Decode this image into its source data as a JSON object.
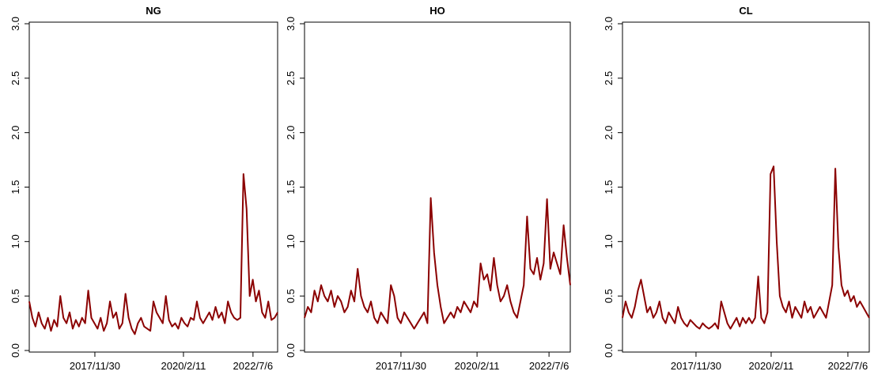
{
  "chart_data": [
    {
      "type": "line",
      "title": "NG",
      "color": "#8b0000",
      "ylim": [
        0,
        3
      ],
      "yticks": [
        {
          "value": 0,
          "label": "0.0"
        },
        0.5,
        {
          "value": 1,
          "label": "1.0"
        },
        1.5,
        {
          "value": 2,
          "label": "2.0"
        },
        2.5,
        {
          "value": 3,
          "label": "3.0"
        }
      ],
      "xlim": [
        0,
        2400
      ],
      "xticks": [
        {
          "value": 634,
          "label": "2017/11/30"
        },
        {
          "value": 1490,
          "label": "2020/2/11"
        },
        {
          "value": 2162,
          "label": "2022/7/6"
        }
      ],
      "x": [
        0,
        30,
        60,
        90,
        120,
        150,
        180,
        210,
        240,
        270,
        300,
        330,
        360,
        390,
        420,
        450,
        480,
        510,
        540,
        570,
        600,
        630,
        660,
        690,
        720,
        750,
        780,
        810,
        840,
        870,
        900,
        930,
        960,
        990,
        1020,
        1050,
        1080,
        1110,
        1140,
        1170,
        1200,
        1230,
        1260,
        1290,
        1320,
        1350,
        1380,
        1410,
        1440,
        1470,
        1500,
        1530,
        1560,
        1590,
        1620,
        1650,
        1680,
        1710,
        1740,
        1770,
        1800,
        1830,
        1860,
        1890,
        1920,
        1950,
        1980,
        2010,
        2040,
        2070,
        2100,
        2130,
        2160,
        2190,
        2220,
        2250,
        2280,
        2310,
        2340,
        2370,
        2400
      ],
      "values": [
        0.45,
        0.3,
        0.22,
        0.35,
        0.25,
        0.2,
        0.3,
        0.18,
        0.28,
        0.22,
        0.5,
        0.3,
        0.25,
        0.35,
        0.2,
        0.28,
        0.22,
        0.3,
        0.25,
        0.55,
        0.3,
        0.25,
        0.2,
        0.3,
        0.18,
        0.25,
        0.45,
        0.3,
        0.35,
        0.2,
        0.25,
        0.52,
        0.3,
        0.2,
        0.15,
        0.25,
        0.3,
        0.22,
        0.2,
        0.18,
        0.45,
        0.35,
        0.3,
        0.25,
        0.5,
        0.28,
        0.22,
        0.25,
        0.2,
        0.3,
        0.25,
        0.22,
        0.3,
        0.28,
        0.45,
        0.3,
        0.25,
        0.3,
        0.35,
        0.28,
        0.4,
        0.3,
        0.35,
        0.25,
        0.45,
        0.35,
        0.3,
        0.28,
        0.3,
        1.62,
        1.3,
        0.5,
        0.65,
        0.45,
        0.55,
        0.35,
        0.3,
        0.45,
        0.28,
        0.3,
        0.35
      ]
    },
    {
      "type": "line",
      "title": "HO",
      "color": "#8b0000",
      "ylim": [
        0,
        3
      ],
      "yticks": [
        {
          "value": 0,
          "label": "0.0"
        },
        0.5,
        {
          "value": 1,
          "label": "1.0"
        },
        1.5,
        {
          "value": 2,
          "label": "2.0"
        },
        2.5,
        {
          "value": 3,
          "label": "3.0"
        }
      ],
      "xlim": [
        0,
        2400
      ],
      "xticks": [
        {
          "value": 871,
          "label": "2017/11/30"
        },
        {
          "value": 1558,
          "label": "2020/2/11"
        },
        {
          "value": 2208,
          "label": "2022/7/6"
        }
      ],
      "x": [
        0,
        30,
        60,
        90,
        120,
        150,
        180,
        210,
        240,
        270,
        300,
        330,
        360,
        390,
        420,
        450,
        480,
        510,
        540,
        570,
        600,
        630,
        660,
        690,
        720,
        750,
        780,
        810,
        840,
        870,
        900,
        930,
        960,
        990,
        1020,
        1050,
        1080,
        1110,
        1140,
        1170,
        1200,
        1230,
        1260,
        1290,
        1320,
        1350,
        1380,
        1410,
        1440,
        1470,
        1500,
        1530,
        1560,
        1590,
        1620,
        1650,
        1680,
        1710,
        1740,
        1770,
        1800,
        1830,
        1860,
        1890,
        1920,
        1950,
        1980,
        2010,
        2040,
        2070,
        2100,
        2130,
        2160,
        2190,
        2220,
        2250,
        2280,
        2310,
        2340,
        2370,
        2400
      ],
      "values": [
        0.3,
        0.4,
        0.35,
        0.55,
        0.45,
        0.6,
        0.5,
        0.45,
        0.55,
        0.4,
        0.5,
        0.45,
        0.35,
        0.4,
        0.55,
        0.45,
        0.75,
        0.5,
        0.4,
        0.35,
        0.45,
        0.3,
        0.25,
        0.35,
        0.3,
        0.25,
        0.6,
        0.5,
        0.3,
        0.25,
        0.35,
        0.3,
        0.25,
        0.2,
        0.25,
        0.3,
        0.35,
        0.25,
        1.4,
        0.9,
        0.6,
        0.4,
        0.25,
        0.3,
        0.35,
        0.3,
        0.4,
        0.35,
        0.45,
        0.4,
        0.35,
        0.45,
        0.4,
        0.8,
        0.65,
        0.7,
        0.55,
        0.85,
        0.6,
        0.45,
        0.5,
        0.6,
        0.45,
        0.35,
        0.3,
        0.45,
        0.6,
        1.23,
        0.75,
        0.7,
        0.85,
        0.65,
        0.8,
        1.39,
        0.75,
        0.9,
        0.8,
        0.7,
        1.15,
        0.85,
        0.6
      ]
    },
    {
      "type": "line",
      "title": "CL",
      "color": "#8b0000",
      "ylim": [
        0,
        3
      ],
      "yticks": [
        {
          "value": 0,
          "label": "0.0"
        },
        0.5,
        {
          "value": 1,
          "label": "1.0"
        },
        1.5,
        {
          "value": 2,
          "label": "2.0"
        },
        2.5,
        {
          "value": 3,
          "label": "3.0"
        }
      ],
      "xlim": [
        0,
        2400
      ],
      "xticks": [
        {
          "value": 715,
          "label": "2017/11/30"
        },
        {
          "value": 1446,
          "label": "2020/2/11"
        },
        {
          "value": 2192,
          "label": "2022/7/6"
        }
      ],
      "x": [
        0,
        30,
        60,
        90,
        120,
        150,
        180,
        210,
        240,
        270,
        300,
        330,
        360,
        390,
        420,
        450,
        480,
        510,
        540,
        570,
        600,
        630,
        660,
        690,
        720,
        750,
        780,
        810,
        840,
        870,
        900,
        930,
        960,
        990,
        1020,
        1050,
        1080,
        1110,
        1140,
        1170,
        1200,
        1230,
        1260,
        1290,
        1320,
        1350,
        1380,
        1410,
        1440,
        1470,
        1500,
        1530,
        1560,
        1590,
        1620,
        1650,
        1680,
        1710,
        1740,
        1770,
        1800,
        1830,
        1860,
        1890,
        1920,
        1950,
        1980,
        2010,
        2040,
        2070,
        2100,
        2130,
        2160,
        2190,
        2220,
        2250,
        2280,
        2310,
        2340,
        2370,
        2400
      ],
      "values": [
        0.3,
        0.45,
        0.35,
        0.3,
        0.4,
        0.55,
        0.65,
        0.5,
        0.35,
        0.4,
        0.3,
        0.35,
        0.45,
        0.3,
        0.25,
        0.35,
        0.3,
        0.25,
        0.4,
        0.3,
        0.25,
        0.22,
        0.28,
        0.25,
        0.22,
        0.2,
        0.25,
        0.22,
        0.2,
        0.22,
        0.25,
        0.2,
        0.45,
        0.35,
        0.25,
        0.2,
        0.25,
        0.3,
        0.22,
        0.3,
        0.25,
        0.3,
        0.25,
        0.3,
        0.68,
        0.3,
        0.25,
        0.35,
        1.62,
        1.69,
        1.0,
        0.5,
        0.4,
        0.35,
        0.45,
        0.3,
        0.4,
        0.35,
        0.3,
        0.45,
        0.35,
        0.4,
        0.3,
        0.35,
        0.4,
        0.35,
        0.3,
        0.45,
        0.6,
        1.67,
        0.95,
        0.6,
        0.5,
        0.55,
        0.45,
        0.5,
        0.4,
        0.45,
        0.4,
        0.35,
        0.3
      ]
    }
  ]
}
